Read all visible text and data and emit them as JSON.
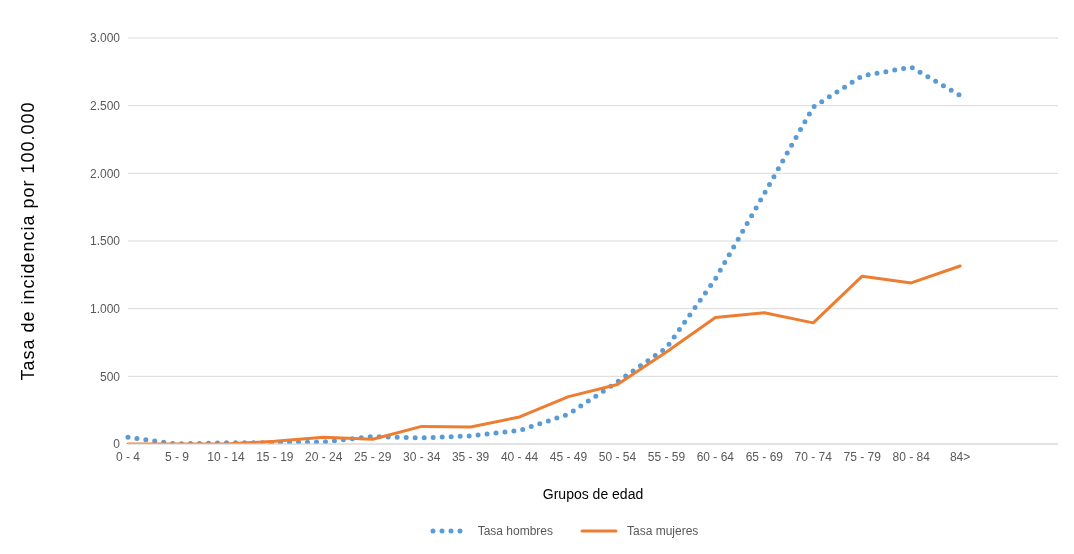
{
  "chart_data": {
    "type": "line",
    "xlabel": "Grupos de edad",
    "ylabel": "Tasa de incidencia por 100.000",
    "categories": [
      "0 - 4",
      "5 - 9",
      "10 - 14",
      "15 - 19",
      "20 - 24",
      "25 - 29",
      "30 - 34",
      "35 - 39",
      "40 - 44",
      "45 - 49",
      "50 - 54",
      "55 - 59",
      "60 - 64",
      "65 - 69",
      "70 - 74",
      "75 - 79",
      "80 - 84",
      "84>",
      null,
      null
    ],
    "series": [
      {
        "name": "Tasa hombres",
        "color": "#5b9bd5",
        "line_style": "dotted",
        "values": [
          50,
          0,
          10,
          10,
          15,
          55,
          45,
          60,
          100,
          220,
          460,
          710,
          1220,
          1850,
          2490,
          2720,
          2785,
          2575,
          null,
          null
        ]
      },
      {
        "name": "Tasa mujeres",
        "color": "#ed7d31",
        "line_style": "solid",
        "values": [
          0,
          0,
          0,
          20,
          50,
          35,
          130,
          125,
          200,
          350,
          440,
          680,
          935,
          970,
          895,
          1240,
          1190,
          1315,
          null,
          null
        ]
      }
    ],
    "ylim": [
      0,
      3000
    ],
    "yticks": [
      {
        "value": 0,
        "label": "0"
      },
      {
        "value": 500,
        "label": "500"
      },
      {
        "value": 1000,
        "label": "1.000"
      },
      {
        "value": 1500,
        "label": "1.500"
      },
      {
        "value": 2000,
        "label": "2.000"
      },
      {
        "value": 2500,
        "label": "2.500"
      },
      {
        "value": 3000,
        "label": "3.000"
      }
    ],
    "grid": "y",
    "legend": "bottom",
    "marker": "none"
  }
}
